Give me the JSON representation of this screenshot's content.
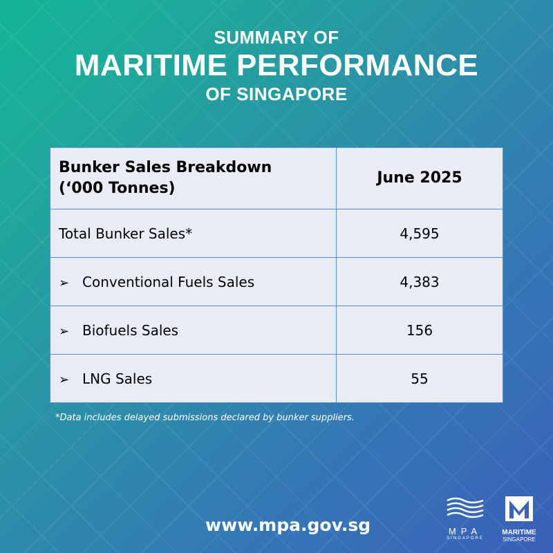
{
  "header": {
    "line1": "SUMMARY OF",
    "line2": "MARITIME PERFORMANCE",
    "line3": "OF SINGAPORE"
  },
  "table": {
    "header": {
      "label_line1": "Bunker Sales Breakdown",
      "label_line2": "(‘000 Tonnes)",
      "period": "June 2025"
    },
    "rows": [
      {
        "label": "Total Bunker Sales*",
        "value": "4,595"
      },
      {
        "label": "Conventional Fuels Sales",
        "value": "4,383"
      },
      {
        "label": "Biofuels Sales",
        "value": "156"
      },
      {
        "label": "LNG Sales",
        "value": "55"
      }
    ]
  },
  "footnote": "*Data includes delayed submissions declared by bunker suppliers.",
  "website": "www.mpa.gov.sg",
  "logos": {
    "mpa": {
      "name": "MPA",
      "sub": "SINGAPORE"
    },
    "maritime_singapore": {
      "name": "MARITIME",
      "sub": "SINGAPORE"
    }
  }
}
